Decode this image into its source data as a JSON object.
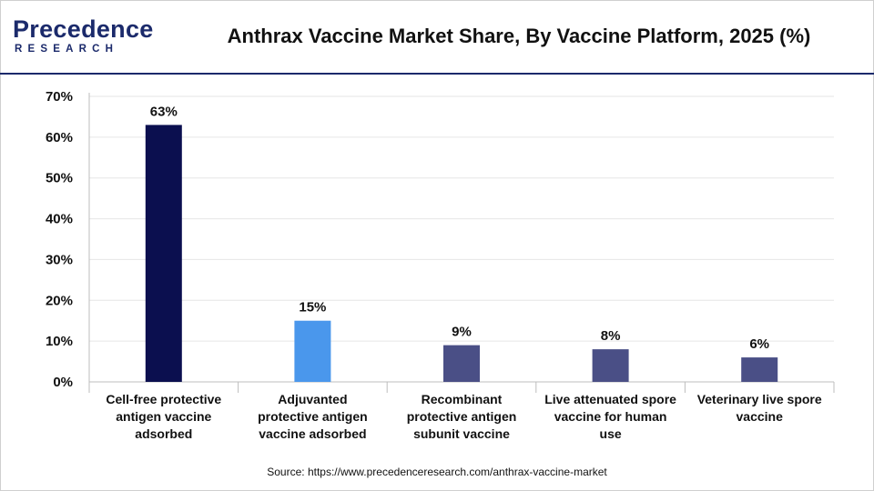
{
  "header": {
    "logo_main": "Precedence",
    "logo_sub": "RESEARCH",
    "title": "Anthrax Vaccine Market Share, By Vaccine Platform, 2025 (%)"
  },
  "footer": {
    "source": "Source: https://www.precedenceresearch.com/anthrax-vaccine-market"
  },
  "chart_data": {
    "type": "bar",
    "title": "Anthrax Vaccine Market Share, By Vaccine Platform, 2025 (%)",
    "xlabel": "",
    "ylabel": "",
    "categories": [
      [
        "Cell-free protective",
        "antigen vaccine",
        "adsorbed"
      ],
      [
        "Adjuvanted",
        "protective antigen",
        "vaccine adsorbed"
      ],
      [
        "Recombinant",
        "protective antigen",
        "subunit vaccine"
      ],
      [
        "Live attenuated spore",
        "vaccine for human",
        "use"
      ],
      [
        "Veterinary live spore",
        "vaccine"
      ]
    ],
    "values": [
      63,
      15,
      9,
      8,
      6
    ],
    "value_labels": [
      "63%",
      "15%",
      "9%",
      "8%",
      "6%"
    ],
    "bar_colors": [
      "#0b0f4f",
      "#4a97ec",
      "#4a4f86",
      "#4a4f86",
      "#4a4f86"
    ],
    "ylim": [
      0,
      70
    ],
    "yticks": [
      0,
      10,
      20,
      30,
      40,
      50,
      60,
      70
    ],
    "ytick_labels": [
      "0%",
      "10%",
      "20%",
      "30%",
      "40%",
      "50%",
      "60%",
      "70%"
    ],
    "grid": true,
    "legend": "none"
  }
}
